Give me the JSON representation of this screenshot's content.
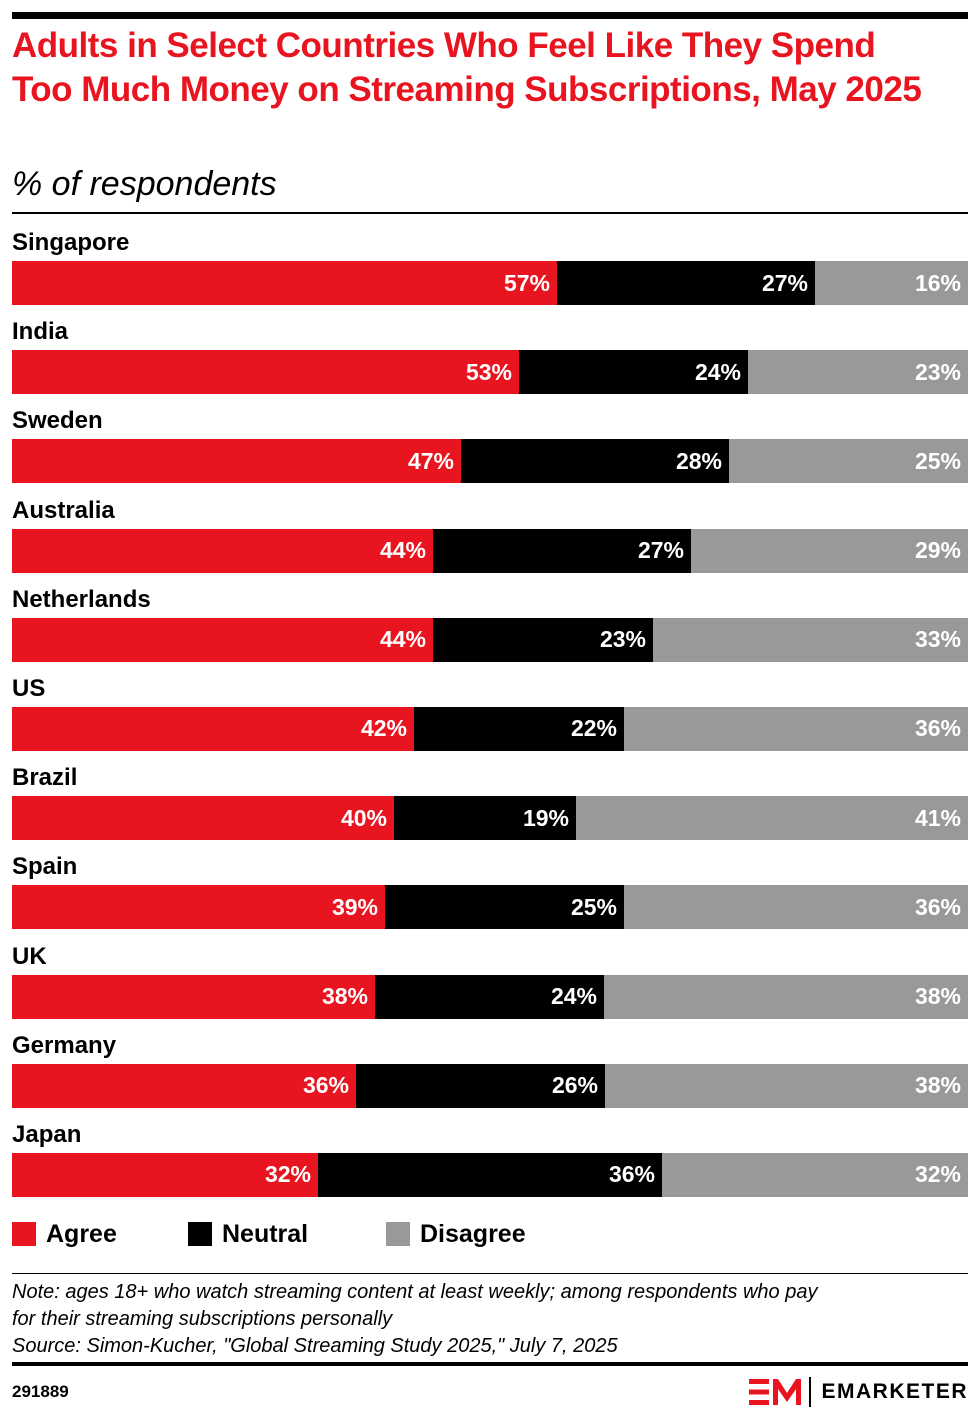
{
  "header": {
    "title": "Adults in Select Countries Who Feel Like They Spend Too Much Money on Streaming Subscriptions, May 2025",
    "subtitle": "% of respondents"
  },
  "colors": {
    "agree": "#e8141f",
    "neutral": "#000000",
    "disagree": "#999999",
    "title": "#e8141f"
  },
  "chart_data": {
    "type": "bar",
    "orientation": "horizontal",
    "stacked": true,
    "title": "Adults in Select Countries Who Feel Like They Spend Too Much Money on Streaming Subscriptions, May 2025",
    "subtitle": "% of respondents",
    "categories": [
      "Singapore",
      "India",
      "Sweden",
      "Australia",
      "Netherlands",
      "US",
      "Brazil",
      "Spain",
      "UK",
      "Germany",
      "Japan"
    ],
    "series": [
      {
        "name": "Agree",
        "values": [
          57,
          53,
          47,
          44,
          44,
          42,
          40,
          39,
          38,
          36,
          32
        ]
      },
      {
        "name": "Neutral",
        "values": [
          27,
          24,
          28,
          27,
          23,
          22,
          19,
          25,
          24,
          26,
          36
        ]
      },
      {
        "name": "Disagree",
        "values": [
          16,
          23,
          25,
          29,
          33,
          36,
          41,
          36,
          38,
          38,
          32
        ]
      }
    ],
    "value_suffix": "%",
    "xlim": [
      0,
      100
    ],
    "legend_position": "bottom-left",
    "grid": false
  },
  "notes": {
    "note_line1": "Note: ages 18+ who watch streaming content at least weekly; among respondents who pay",
    "note_line2": "for their streaming subscriptions personally",
    "source": "Source: Simon-Kucher, \"Global Streaming Study 2025,\" July 7, 2025"
  },
  "footer": {
    "chart_id": "291889",
    "brand_name": "EMARKETER"
  }
}
